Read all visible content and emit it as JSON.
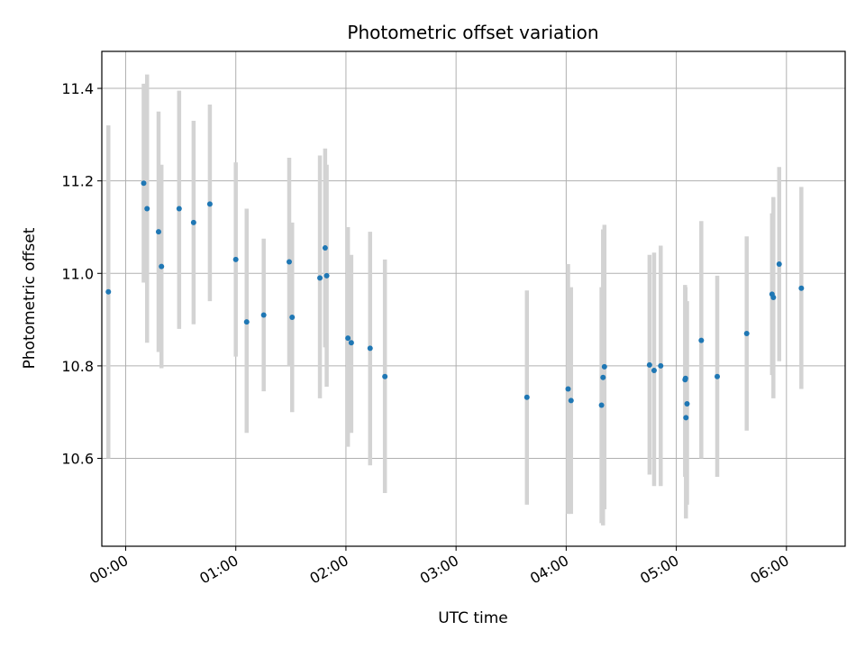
{
  "chart_data": {
    "type": "scatter",
    "title": "Photometric offset variation",
    "xlabel": "UTC time",
    "ylabel": "Photometric offset",
    "x_unit": "UTC time of day (HH:MM)",
    "xlim": [
      "23:47",
      "06:32"
    ],
    "ylim": [
      10.41,
      11.48
    ],
    "grid": true,
    "x_ticks": [
      "00:00",
      "01:00",
      "02:00",
      "03:00",
      "04:00",
      "05:00",
      "06:00"
    ],
    "y_ticks": [
      "10.6",
      "10.8",
      "11.0",
      "11.2",
      "11.4"
    ],
    "colors": {
      "point": "#1f77b4",
      "errorbar": "#d3d3d3",
      "grid": "#b0b0b0"
    },
    "points": [
      {
        "t": "23:50:34",
        "y": 10.96,
        "ylo": 10.6,
        "yhi": 11.32
      },
      {
        "t": "00:09:49",
        "y": 11.195,
        "ylo": 10.98,
        "yhi": 11.41
      },
      {
        "t": "00:11:39",
        "y": 11.14,
        "ylo": 10.85,
        "yhi": 11.43
      },
      {
        "t": "00:17:55",
        "y": 11.09,
        "ylo": 10.83,
        "yhi": 11.35
      },
      {
        "t": "00:19:30",
        "y": 11.015,
        "ylo": 10.795,
        "yhi": 11.235
      },
      {
        "t": "00:29:08",
        "y": 11.14,
        "ylo": 10.88,
        "yhi": 11.395
      },
      {
        "t": "00:37:00",
        "y": 11.11,
        "ylo": 10.89,
        "yhi": 11.33
      },
      {
        "t": "00:45:52",
        "y": 11.15,
        "ylo": 10.94,
        "yhi": 11.365
      },
      {
        "t": "00:59:59",
        "y": 11.03,
        "ylo": 10.82,
        "yhi": 11.24
      },
      {
        "t": "01:05:55",
        "y": 10.895,
        "ylo": 10.655,
        "yhi": 11.14
      },
      {
        "t": "01:15:12",
        "y": 10.91,
        "ylo": 10.745,
        "yhi": 11.075
      },
      {
        "t": "01:29:06",
        "y": 11.025,
        "ylo": 10.8,
        "yhi": 11.25
      },
      {
        "t": "01:30:42",
        "y": 10.905,
        "ylo": 10.7,
        "yhi": 11.11
      },
      {
        "t": "01:45:49",
        "y": 10.99,
        "ylo": 10.73,
        "yhi": 11.255
      },
      {
        "t": "01:48:41",
        "y": 11.055,
        "ylo": 10.84,
        "yhi": 11.27
      },
      {
        "t": "01:49:31",
        "y": 10.995,
        "ylo": 10.755,
        "yhi": 11.235
      },
      {
        "t": "02:01:05",
        "y": 10.86,
        "ylo": 10.625,
        "yhi": 11.1
      },
      {
        "t": "02:02:55",
        "y": 10.85,
        "ylo": 10.655,
        "yhi": 11.04
      },
      {
        "t": "02:13:10",
        "y": 10.838,
        "ylo": 10.585,
        "yhi": 11.09
      },
      {
        "t": "02:21:14",
        "y": 10.777,
        "ylo": 10.525,
        "yhi": 11.03
      },
      {
        "t": "03:38:36",
        "y": 10.732,
        "ylo": 10.5,
        "yhi": 10.963
      },
      {
        "t": "04:01:03",
        "y": 10.75,
        "ylo": 10.48,
        "yhi": 11.02
      },
      {
        "t": "04:02:39",
        "y": 10.725,
        "ylo": 10.48,
        "yhi": 10.97
      },
      {
        "t": "04:19:15",
        "y": 10.715,
        "ylo": 10.46,
        "yhi": 10.97
      },
      {
        "t": "04:20:05",
        "y": 10.775,
        "ylo": 10.455,
        "yhi": 11.095
      },
      {
        "t": "04:20:50",
        "y": 10.798,
        "ylo": 10.49,
        "yhi": 11.105
      },
      {
        "t": "04:45:24",
        "y": 10.802,
        "ylo": 10.565,
        "yhi": 11.04
      },
      {
        "t": "04:47:54",
        "y": 10.79,
        "ylo": 10.54,
        "yhi": 11.045
      },
      {
        "t": "04:51:30",
        "y": 10.8,
        "ylo": 10.54,
        "yhi": 11.06
      },
      {
        "t": "05:04:47",
        "y": 10.77,
        "ylo": 10.56,
        "yhi": 10.975
      },
      {
        "t": "05:05:01",
        "y": 10.773,
        "ylo": 10.57,
        "yhi": 10.97
      },
      {
        "t": "05:05:15",
        "y": 10.688,
        "ylo": 10.47,
        "yhi": 10.905
      },
      {
        "t": "05:05:51",
        "y": 10.718,
        "ylo": 10.5,
        "yhi": 10.94
      },
      {
        "t": "05:13:37",
        "y": 10.855,
        "ylo": 10.6,
        "yhi": 11.113
      },
      {
        "t": "05:22:18",
        "y": 10.777,
        "ylo": 10.56,
        "yhi": 10.995
      },
      {
        "t": "05:38:21",
        "y": 10.87,
        "ylo": 10.66,
        "yhi": 11.08
      },
      {
        "t": "05:52:09",
        "y": 10.955,
        "ylo": 10.78,
        "yhi": 11.13
      },
      {
        "t": "05:52:53",
        "y": 10.948,
        "ylo": 10.73,
        "yhi": 11.165
      },
      {
        "t": "05:56:03",
        "y": 11.02,
        "ylo": 10.81,
        "yhi": 11.23
      },
      {
        "t": "06:08:07",
        "y": 10.968,
        "ylo": 10.75,
        "yhi": 11.187
      }
    ]
  }
}
